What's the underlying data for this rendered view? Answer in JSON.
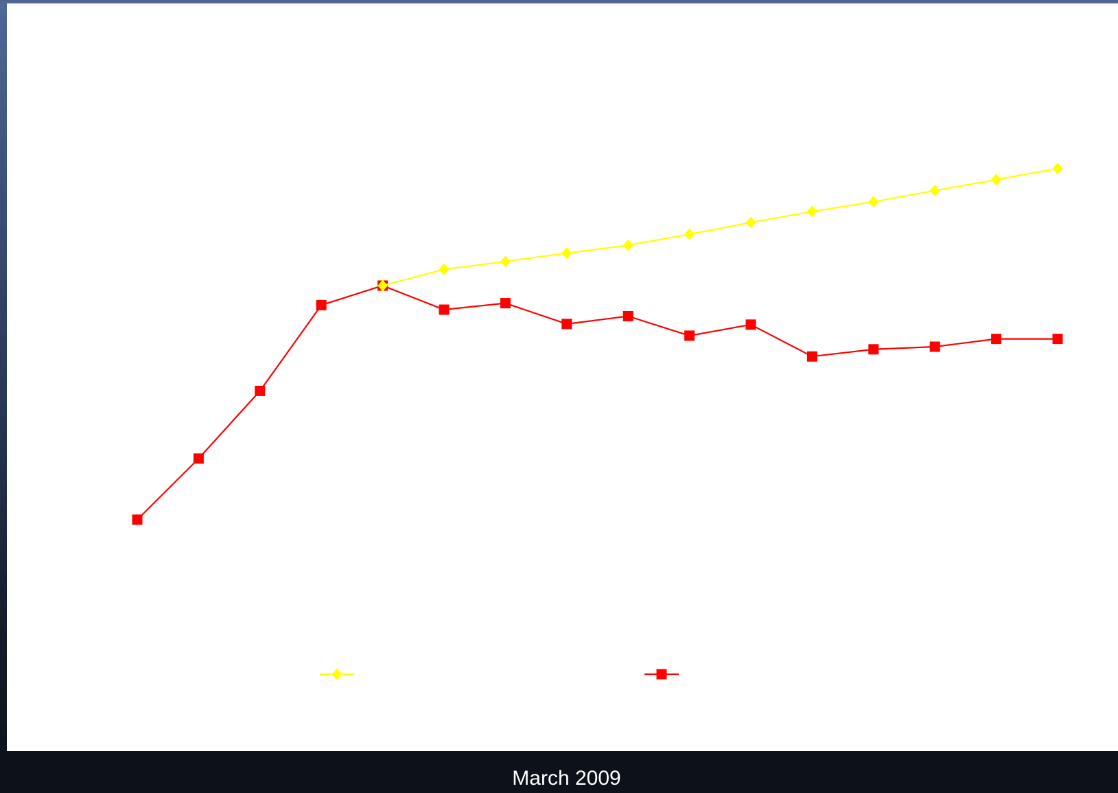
{
  "footer": {
    "date_label": "March 2009"
  },
  "chart_data": {
    "type": "line",
    "title": "",
    "xlabel": "",
    "ylabel": "",
    "grid": false,
    "legend_position": "bottom",
    "x": [
      1,
      2,
      3,
      4,
      5,
      6,
      7,
      8,
      9,
      10,
      11,
      12,
      13,
      14,
      15,
      16
    ],
    "ylim": [
      0,
      100
    ],
    "series": [
      {
        "color": "#ffff00",
        "marker": "diamond",
        "x": [
          5,
          6,
          7,
          8,
          9,
          10,
          11,
          12,
          13,
          14,
          15,
          16
        ],
        "values": [
          66.0,
          68.5,
          69.7,
          71.0,
          72.2,
          73.9,
          75.7,
          77.4,
          78.9,
          80.6,
          82.3,
          84.0
        ]
      },
      {
        "color": "#ff0000",
        "marker": "square",
        "x": [
          1,
          2,
          3,
          4,
          5,
          6,
          7,
          8,
          9,
          10,
          11,
          12,
          13,
          14,
          15,
          16
        ],
        "values": [
          30.0,
          39.4,
          49.8,
          63.0,
          66.0,
          62.3,
          63.3,
          60.1,
          61.3,
          58.3,
          60.0,
          55.1,
          56.2,
          56.6,
          57.8,
          57.8
        ]
      }
    ]
  }
}
